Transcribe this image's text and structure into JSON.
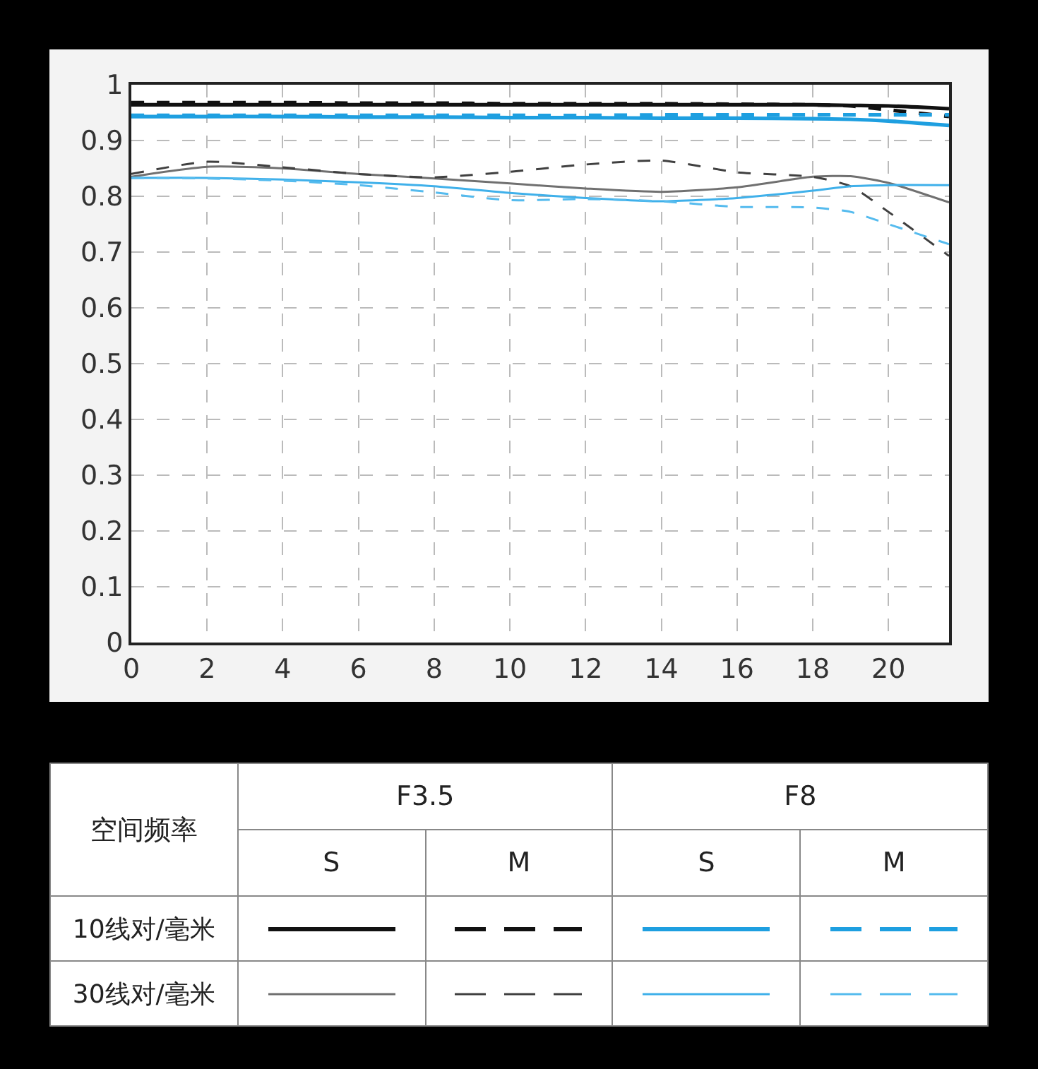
{
  "chart_data": {
    "type": "line",
    "x": [
      0,
      2,
      4,
      6,
      8,
      10,
      12,
      14,
      16,
      18,
      19,
      20,
      21.6
    ],
    "xlim": [
      0,
      21.6
    ],
    "xticks": [
      0,
      2,
      4,
      6,
      8,
      10,
      12,
      14,
      16,
      18,
      20
    ],
    "ylim": [
      0,
      1
    ],
    "yticks": [
      0,
      0.1,
      0.2,
      0.3,
      0.4,
      0.5,
      0.6,
      0.7,
      0.8,
      0.9,
      1
    ],
    "grid": true,
    "marker": "none",
    "series": [
      {
        "color": "#111111",
        "line_style": "solid",
        "values": [
          0.964,
          0.964,
          0.964,
          0.964,
          0.964,
          0.964,
          0.964,
          0.964,
          0.964,
          0.964,
          0.963,
          0.962,
          0.957
        ]
      },
      {
        "color": "#111111",
        "line_style": "dashed",
        "values": [
          0.968,
          0.968,
          0.968,
          0.967,
          0.967,
          0.966,
          0.966,
          0.966,
          0.965,
          0.964,
          0.962,
          0.955,
          0.943
        ]
      },
      {
        "color": "#1e9fe0",
        "line_style": "solid",
        "values": [
          0.943,
          0.943,
          0.943,
          0.942,
          0.942,
          0.941,
          0.941,
          0.94,
          0.94,
          0.939,
          0.938,
          0.935,
          0.927
        ]
      },
      {
        "color": "#1e9fe0",
        "line_style": "dashed",
        "values": [
          0.945,
          0.945,
          0.945,
          0.945,
          0.945,
          0.945,
          0.945,
          0.946,
          0.946,
          0.946,
          0.946,
          0.946,
          0.946
        ]
      },
      {
        "color": "#707070",
        "line_style": "solid",
        "values": [
          0.835,
          0.853,
          0.85,
          0.84,
          0.832,
          0.823,
          0.814,
          0.808,
          0.816,
          0.835,
          0.836,
          0.824,
          0.789
        ]
      },
      {
        "color": "#404040",
        "line_style": "dashed",
        "values": [
          0.84,
          0.862,
          0.852,
          0.84,
          0.834,
          0.844,
          0.857,
          0.864,
          0.843,
          0.835,
          0.818,
          0.772,
          0.693
        ]
      },
      {
        "color": "#3fb0ea",
        "line_style": "solid",
        "values": [
          0.833,
          0.833,
          0.83,
          0.825,
          0.818,
          0.806,
          0.797,
          0.791,
          0.797,
          0.81,
          0.818,
          0.82,
          0.82
        ]
      },
      {
        "color": "#55bbee",
        "line_style": "dashed",
        "values": [
          0.833,
          0.832,
          0.828,
          0.82,
          0.807,
          0.793,
          0.795,
          0.791,
          0.781,
          0.78,
          0.772,
          0.75,
          0.714
        ]
      }
    ],
    "annotations": [
      "空间频率",
      "F3.5",
      "F8",
      "S",
      "M",
      "S",
      "M",
      "10线对/毫米",
      "30线对/毫米"
    ]
  }
}
